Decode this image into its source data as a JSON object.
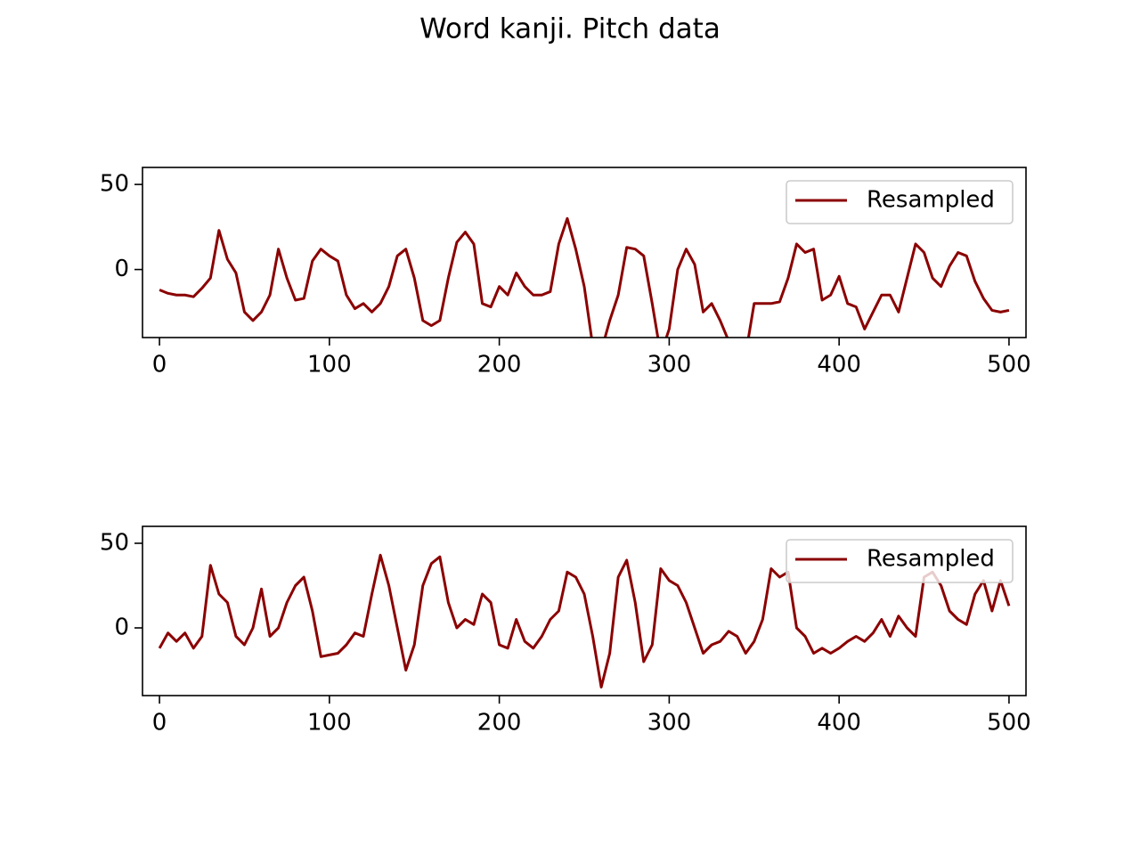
{
  "title": "Word kanji. Pitch data",
  "chart_data": [
    {
      "type": "line",
      "xlim": [
        -10,
        510
      ],
      "ylim": [
        -40,
        60
      ],
      "xticks": [
        0,
        100,
        200,
        300,
        400,
        500
      ],
      "yticks": [
        0,
        50
      ],
      "grid": false,
      "legend": "upper right",
      "x": [
        0,
        5,
        10,
        15,
        20,
        25,
        30,
        35,
        40,
        45,
        50,
        55,
        60,
        65,
        70,
        75,
        80,
        85,
        90,
        95,
        100,
        105,
        110,
        115,
        120,
        125,
        130,
        135,
        140,
        145,
        150,
        155,
        160,
        165,
        170,
        175,
        180,
        185,
        190,
        195,
        200,
        205,
        210,
        215,
        220,
        225,
        230,
        235,
        240,
        245,
        250,
        255,
        260,
        265,
        270,
        275,
        280,
        285,
        290,
        295,
        300,
        305,
        310,
        315,
        320,
        325,
        330,
        335,
        340,
        345,
        350,
        355,
        360,
        365,
        370,
        375,
        380,
        385,
        390,
        395,
        400,
        405,
        410,
        415,
        420,
        425,
        430,
        435,
        440,
        445,
        450,
        455,
        460,
        465,
        470,
        475,
        480,
        485,
        490,
        495,
        500
      ],
      "series": [
        {
          "name": "Resampled",
          "color": "#8b0000",
          "values": [
            -12,
            -14,
            -15,
            -15,
            -16,
            -11,
            -5,
            23,
            6,
            -2,
            -25,
            -30,
            -25,
            -15,
            12,
            -5,
            -18,
            -17,
            5,
            12,
            8,
            5,
            -15,
            -23,
            -20,
            -25,
            -20,
            -10,
            8,
            12,
            -5,
            -30,
            -33,
            -30,
            -5,
            16,
            22,
            15,
            -20,
            -22,
            -10,
            -15,
            -2,
            -10,
            -15,
            -15,
            -13,
            15,
            30,
            12,
            -10,
            -45,
            -48,
            -30,
            -15,
            13,
            12,
            8,
            -20,
            -50,
            -35,
            0,
            12,
            3,
            -25,
            -20,
            -30,
            -42,
            -60,
            -50,
            -20,
            -20,
            -20,
            -19,
            -5,
            15,
            10,
            12,
            -18,
            -15,
            -4,
            -20,
            -22,
            -35,
            -25,
            -15,
            -15,
            -25,
            -5,
            15,
            10,
            -5,
            -10,
            2,
            10,
            8,
            -7,
            -17,
            -24,
            -25,
            -24
          ]
        }
      ]
    },
    {
      "type": "line",
      "xlim": [
        -10,
        510
      ],
      "ylim": [
        -40,
        60
      ],
      "xticks": [
        0,
        100,
        200,
        300,
        400,
        500
      ],
      "yticks": [
        0,
        50
      ],
      "grid": false,
      "legend": "upper right",
      "x": [
        0,
        5,
        10,
        15,
        20,
        25,
        30,
        35,
        40,
        45,
        50,
        55,
        60,
        65,
        70,
        75,
        80,
        85,
        90,
        95,
        100,
        105,
        110,
        115,
        120,
        125,
        130,
        135,
        140,
        145,
        150,
        155,
        160,
        165,
        170,
        175,
        180,
        185,
        190,
        195,
        200,
        205,
        210,
        215,
        220,
        225,
        230,
        235,
        240,
        245,
        250,
        255,
        260,
        265,
        270,
        275,
        280,
        285,
        290,
        295,
        300,
        305,
        310,
        315,
        320,
        325,
        330,
        335,
        340,
        345,
        350,
        355,
        360,
        365,
        370,
        375,
        380,
        385,
        390,
        395,
        400,
        405,
        410,
        415,
        420,
        425,
        430,
        435,
        440,
        445,
        450,
        455,
        460,
        465,
        470,
        475,
        480,
        485,
        490,
        495,
        500
      ],
      "series": [
        {
          "name": "Resampled",
          "color": "#8b0000",
          "values": [
            -12,
            -3,
            -8,
            -3,
            -12,
            -5,
            37,
            20,
            15,
            -5,
            -10,
            0,
            23,
            -5,
            0,
            15,
            25,
            30,
            10,
            -17,
            -16,
            -15,
            -10,
            -3,
            -5,
            20,
            43,
            25,
            0,
            -25,
            -10,
            25,
            38,
            42,
            15,
            0,
            5,
            2,
            20,
            15,
            -10,
            -12,
            5,
            -8,
            -12,
            -5,
            5,
            10,
            33,
            30,
            20,
            -5,
            -35,
            -15,
            30,
            40,
            15,
            -20,
            -10,
            35,
            28,
            25,
            15,
            0,
            -15,
            -10,
            -8,
            -2,
            -5,
            -15,
            -8,
            5,
            35,
            30,
            33,
            0,
            -5,
            -15,
            -12,
            -15,
            -12,
            -8,
            -5,
            -8,
            -3,
            5,
            -5,
            7,
            0,
            -5,
            30,
            33,
            25,
            10,
            5,
            2,
            20,
            28,
            10,
            28,
            13
          ]
        }
      ]
    }
  ]
}
